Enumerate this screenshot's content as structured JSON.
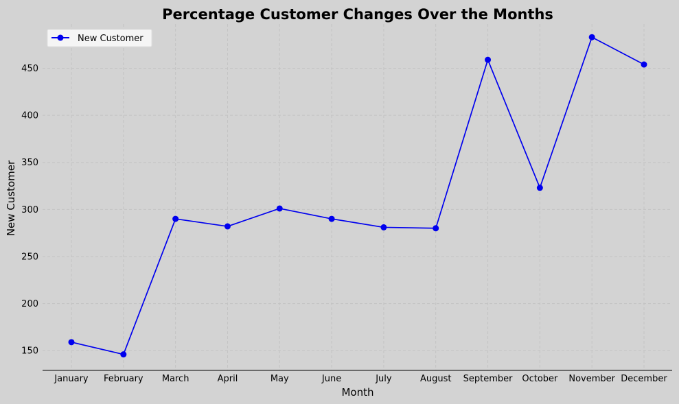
{
  "chart_data": {
    "type": "line",
    "title": "Percentage Customer Changes Over the Months",
    "xlabel": "Month",
    "ylabel": "New Customer",
    "categories": [
      "January",
      "February",
      "March",
      "April",
      "May",
      "June",
      "July",
      "August",
      "September",
      "October",
      "November",
      "December"
    ],
    "series": [
      {
        "name": "New Customer",
        "color": "#0000ee",
        "values": [
          159,
          146,
          290,
          282,
          301,
          290,
          281,
          280,
          459,
          323,
          483,
          454
        ]
      }
    ],
    "ylim": [
      129,
      497
    ],
    "yticks": [
      150,
      200,
      250,
      300,
      350,
      400,
      450
    ],
    "grid": true,
    "legend_position": "top-left",
    "marker": "circle"
  }
}
